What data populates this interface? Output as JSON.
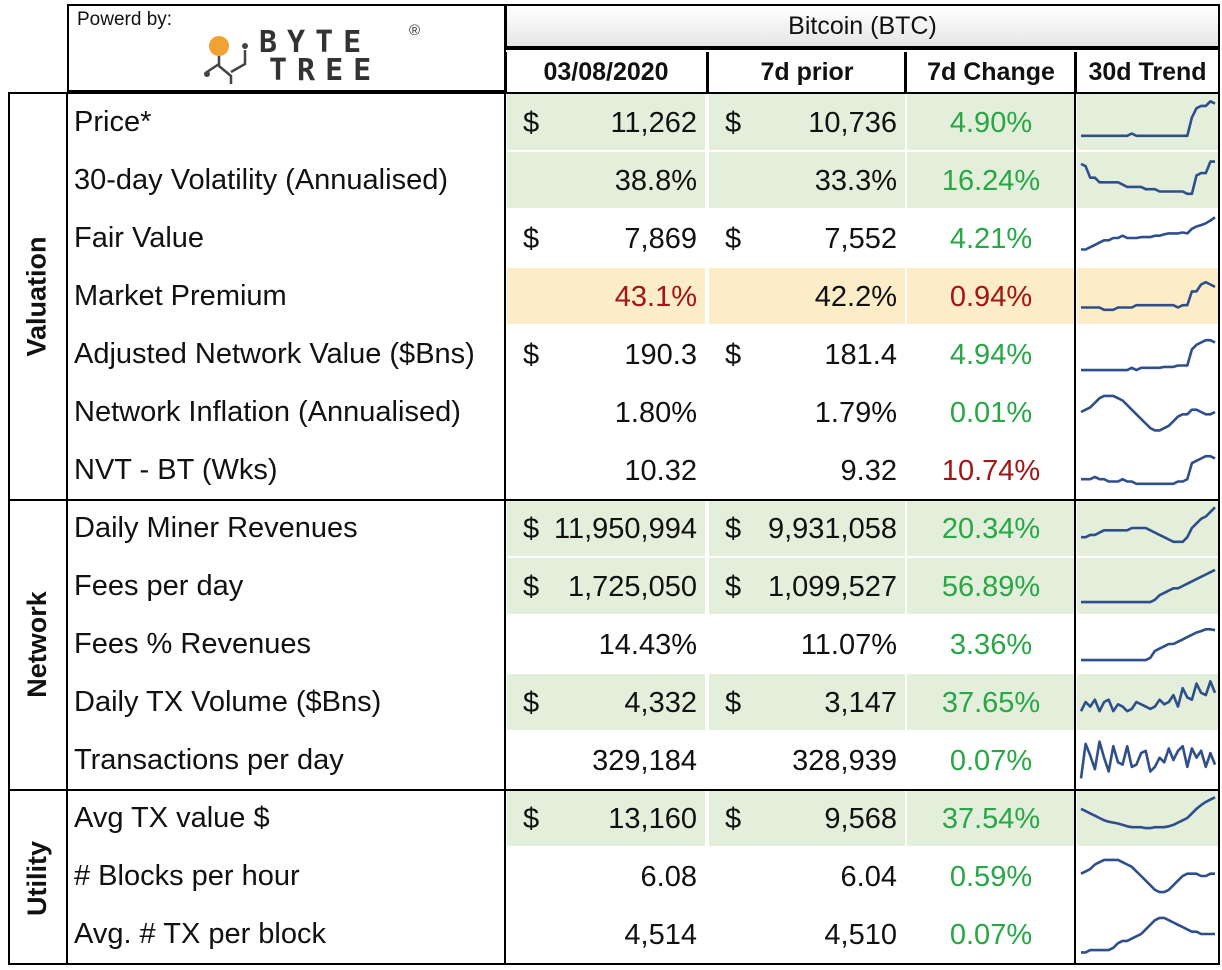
{
  "header": {
    "powered_by": "Powerd by:",
    "logo_top": "BYTE",
    "logo_bottom": "TREE",
    "logo_mark": "®",
    "asset": "Bitcoin (BTC)",
    "col_date": "03/08/2020",
    "col_prior": "7d prior",
    "col_change": "7d Change",
    "col_trend": "30d Trend"
  },
  "sections": [
    {
      "label": "Valuation"
    },
    {
      "label": "Network"
    },
    {
      "label": "Utility"
    }
  ],
  "colors": {
    "accent_green": "#27a745",
    "accent_red": "#a31414",
    "fill_green": "#e3efdb",
    "fill_orange": "#fcecc8",
    "spark": "#2f4f8a"
  },
  "rows": [
    {
      "metric": "Price*",
      "dollar1": "$",
      "val1": "11,262",
      "dollar2": "$",
      "val2": "10,736",
      "change": "4.90%",
      "change_color": "green",
      "trend": [
        0.2,
        0.2,
        0.2,
        0.2,
        0.2,
        0.2,
        0.2,
        0.2,
        0.2,
        0.2,
        0.2,
        0.25,
        0.2,
        0.2,
        0.2,
        0.2,
        0.2,
        0.2,
        0.2,
        0.2,
        0.2,
        0.2,
        0.2,
        0.2,
        0.6,
        0.8,
        0.85,
        0.85,
        0.95,
        0.9
      ]
    },
    {
      "metric": "30-day Volatility (Annualised)",
      "val1": "38.8%",
      "val2": "33.3%",
      "change": "16.24%",
      "change_color": "green",
      "trend": [
        0.85,
        0.8,
        0.55,
        0.55,
        0.45,
        0.45,
        0.45,
        0.45,
        0.45,
        0.4,
        0.35,
        0.35,
        0.35,
        0.35,
        0.3,
        0.3,
        0.3,
        0.25,
        0.25,
        0.25,
        0.25,
        0.25,
        0.25,
        0.2,
        0.2,
        0.6,
        0.65,
        0.65,
        0.9,
        0.9
      ]
    },
    {
      "metric": "Fair Value",
      "dollar1": "$",
      "val1": "7,869",
      "dollar2": "$",
      "val2": "7,552",
      "change": "4.21%",
      "change_color": "green",
      "trend": [
        0.25,
        0.25,
        0.3,
        0.35,
        0.4,
        0.45,
        0.45,
        0.5,
        0.5,
        0.55,
        0.5,
        0.5,
        0.5,
        0.52,
        0.52,
        0.52,
        0.55,
        0.55,
        0.58,
        0.6,
        0.6,
        0.6,
        0.62,
        0.6,
        0.7,
        0.75,
        0.78,
        0.82,
        0.88,
        0.95
      ]
    },
    {
      "metric": "Market Premium",
      "val1": "43.1%",
      "val1_color": "red",
      "val2": "42.2%",
      "change": "0.94%",
      "change_color": "red",
      "trend": [
        0.25,
        0.25,
        0.25,
        0.25,
        0.25,
        0.2,
        0.2,
        0.2,
        0.25,
        0.25,
        0.25,
        0.25,
        0.3,
        0.3,
        0.3,
        0.3,
        0.3,
        0.3,
        0.3,
        0.3,
        0.3,
        0.25,
        0.3,
        0.3,
        0.6,
        0.6,
        0.75,
        0.8,
        0.75,
        0.7
      ]
    },
    {
      "metric": "Adjusted Network Value ($Bns)",
      "dollar1": "$",
      "val1": "190.3",
      "dollar2": "$",
      "val2": "181.4",
      "change": "4.94%",
      "change_color": "green",
      "trend": [
        0.15,
        0.15,
        0.15,
        0.15,
        0.15,
        0.15,
        0.15,
        0.15,
        0.15,
        0.15,
        0.15,
        0.2,
        0.15,
        0.2,
        0.2,
        0.2,
        0.2,
        0.2,
        0.22,
        0.22,
        0.22,
        0.25,
        0.25,
        0.25,
        0.6,
        0.7,
        0.75,
        0.8,
        0.8,
        0.75
      ]
    },
    {
      "metric": "Network Inflation (Annualised)",
      "val1": "1.80%",
      "val2": "1.79%",
      "change": "0.01%",
      "change_color": "green",
      "trend": [
        0.5,
        0.55,
        0.6,
        0.7,
        0.8,
        0.85,
        0.85,
        0.85,
        0.8,
        0.75,
        0.65,
        0.55,
        0.45,
        0.35,
        0.25,
        0.15,
        0.1,
        0.1,
        0.15,
        0.2,
        0.3,
        0.4,
        0.45,
        0.45,
        0.55,
        0.55,
        0.5,
        0.45,
        0.45,
        0.5
      ]
    },
    {
      "metric": "NVT - BT (Wks)",
      "val1": "10.32",
      "val2": "9.32",
      "change": "10.74%",
      "change_color": "red",
      "trend": [
        0.3,
        0.3,
        0.3,
        0.35,
        0.3,
        0.3,
        0.25,
        0.25,
        0.25,
        0.3,
        0.25,
        0.25,
        0.2,
        0.2,
        0.2,
        0.2,
        0.2,
        0.2,
        0.2,
        0.2,
        0.2,
        0.25,
        0.25,
        0.3,
        0.65,
        0.7,
        0.75,
        0.8,
        0.8,
        0.75
      ]
    },
    {
      "metric": "Daily Miner Revenues",
      "dollar1": "$",
      "val1": "11,950,994",
      "dollar2": "$",
      "val2": "9,931,058",
      "change": "20.34%",
      "change_color": "green",
      "trend": [
        0.3,
        0.3,
        0.35,
        0.35,
        0.4,
        0.45,
        0.45,
        0.45,
        0.45,
        0.45,
        0.45,
        0.5,
        0.5,
        0.5,
        0.5,
        0.45,
        0.4,
        0.35,
        0.3,
        0.25,
        0.2,
        0.2,
        0.2,
        0.3,
        0.5,
        0.6,
        0.7,
        0.75,
        0.85,
        0.95
      ]
    },
    {
      "metric": "Fees per day",
      "dollar1": "$",
      "val1": "1,725,050",
      "dollar2": "$",
      "val2": "1,099,527",
      "change": "56.89%",
      "change_color": "green",
      "trend": [
        0.15,
        0.15,
        0.15,
        0.15,
        0.15,
        0.15,
        0.15,
        0.15,
        0.15,
        0.15,
        0.15,
        0.15,
        0.15,
        0.15,
        0.15,
        0.15,
        0.2,
        0.3,
        0.35,
        0.4,
        0.45,
        0.45,
        0.5,
        0.55,
        0.6,
        0.65,
        0.7,
        0.75,
        0.8,
        0.85
      ]
    },
    {
      "metric": "Fees % Revenues",
      "val1": "14.43%",
      "val2": "11.07%",
      "change": "3.36%",
      "change_color": "green",
      "trend": [
        0.15,
        0.15,
        0.15,
        0.15,
        0.15,
        0.15,
        0.15,
        0.15,
        0.15,
        0.15,
        0.15,
        0.15,
        0.15,
        0.15,
        0.15,
        0.2,
        0.35,
        0.4,
        0.45,
        0.5,
        0.5,
        0.55,
        0.6,
        0.65,
        0.7,
        0.75,
        0.78,
        0.82,
        0.82,
        0.8
      ]
    },
    {
      "metric": "Daily TX Volume ($Bns)",
      "dollar1": "$",
      "val1": "4,332",
      "dollar2": "$",
      "val2": "3,147",
      "change": "37.65%",
      "change_color": "green",
      "trend": [
        0.3,
        0.5,
        0.4,
        0.55,
        0.3,
        0.5,
        0.55,
        0.3,
        0.45,
        0.4,
        0.3,
        0.35,
        0.5,
        0.45,
        0.4,
        0.35,
        0.4,
        0.55,
        0.45,
        0.5,
        0.65,
        0.4,
        0.8,
        0.6,
        0.55,
        0.9,
        0.7,
        0.65,
        0.95,
        0.7
      ]
    },
    {
      "metric": "Transactions per day",
      "val1": "329,184",
      "val2": "328,939",
      "change": "0.07%",
      "change_color": "green",
      "trend": [
        0.1,
        0.85,
        0.6,
        0.3,
        0.9,
        0.55,
        0.25,
        0.8,
        0.45,
        0.4,
        0.8,
        0.35,
        0.4,
        0.65,
        0.7,
        0.25,
        0.35,
        0.55,
        0.45,
        0.75,
        0.5,
        0.7,
        0.8,
        0.35,
        0.75,
        0.55,
        0.7,
        0.35,
        0.65,
        0.4
      ]
    },
    {
      "metric": "Avg TX value $",
      "dollar1": "$",
      "val1": "13,160",
      "dollar2": "$",
      "val2": "9,568",
      "change": "37.54%",
      "change_color": "green",
      "trend": [
        0.7,
        0.65,
        0.6,
        0.55,
        0.5,
        0.45,
        0.42,
        0.4,
        0.38,
        0.35,
        0.32,
        0.3,
        0.3,
        0.3,
        0.28,
        0.28,
        0.3,
        0.3,
        0.3,
        0.32,
        0.35,
        0.4,
        0.45,
        0.5,
        0.6,
        0.7,
        0.78,
        0.85,
        0.9,
        0.95
      ]
    },
    {
      "metric": "# Blocks per hour",
      "val1": "6.08",
      "val2": "6.04",
      "change": "0.59%",
      "change_color": "green",
      "trend": [
        0.55,
        0.6,
        0.65,
        0.75,
        0.8,
        0.85,
        0.85,
        0.85,
        0.85,
        0.8,
        0.75,
        0.7,
        0.6,
        0.5,
        0.4,
        0.3,
        0.2,
        0.15,
        0.15,
        0.2,
        0.3,
        0.4,
        0.5,
        0.55,
        0.55,
        0.55,
        0.5,
        0.5,
        0.55,
        0.55
      ]
    },
    {
      "metric": "Avg. # TX per block",
      "val1": "4,514",
      "val2": "4,510",
      "change": "0.07%",
      "change_color": "green",
      "trend": [
        0.1,
        0.1,
        0.15,
        0.15,
        0.15,
        0.15,
        0.15,
        0.2,
        0.3,
        0.35,
        0.35,
        0.4,
        0.45,
        0.5,
        0.6,
        0.7,
        0.8,
        0.85,
        0.85,
        0.8,
        0.75,
        0.7,
        0.65,
        0.6,
        0.55,
        0.55,
        0.5,
        0.5,
        0.5,
        0.5
      ]
    }
  ]
}
